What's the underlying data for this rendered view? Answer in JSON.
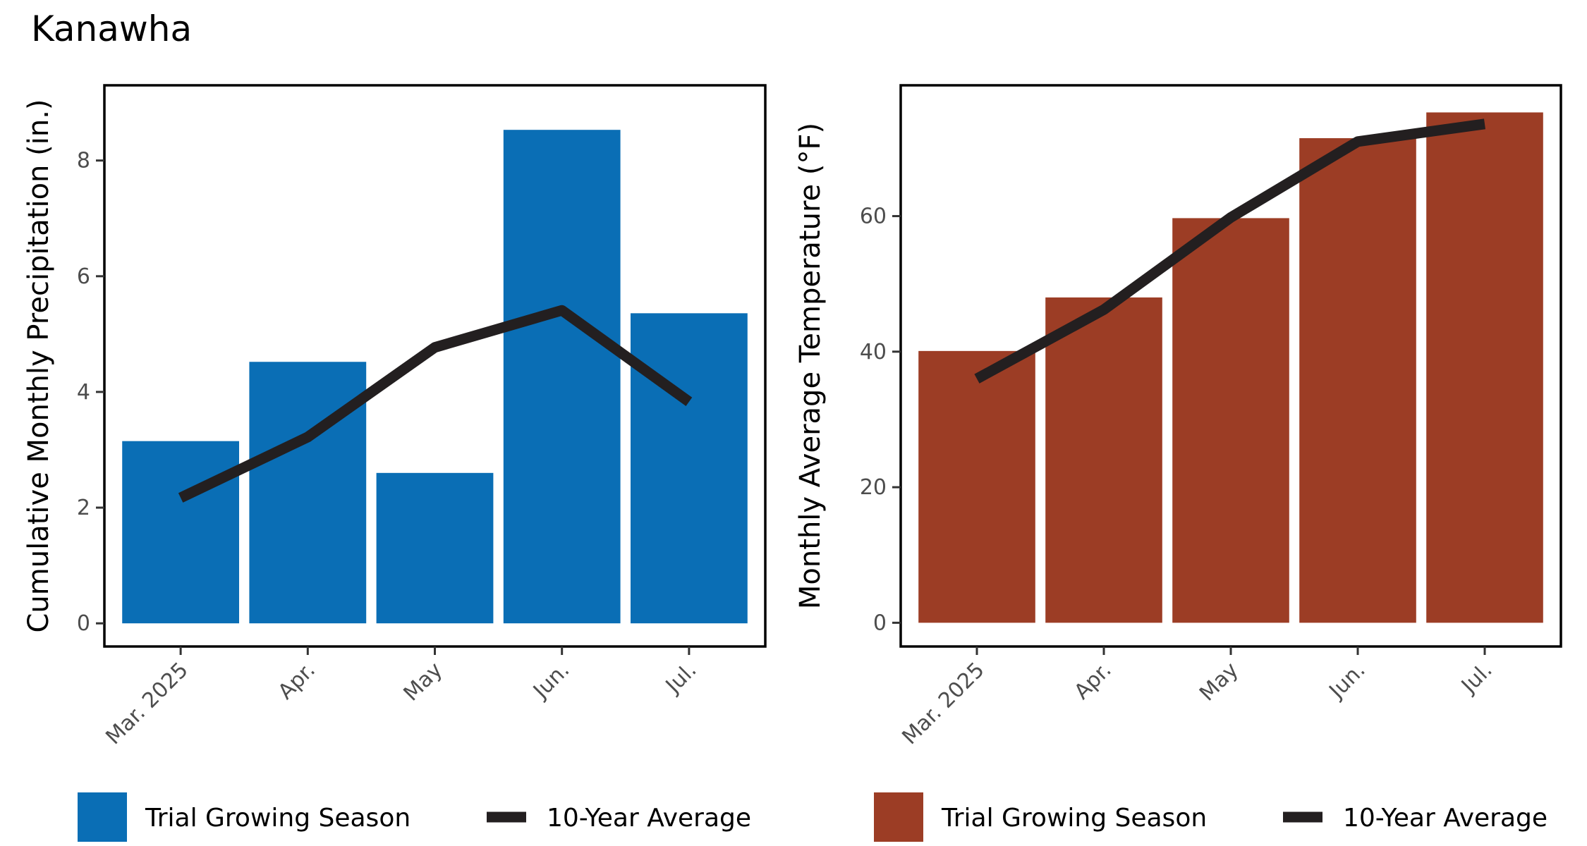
{
  "title": "Kanawha",
  "colors": {
    "precip": "#0A6EB5",
    "temp": "#9C3D25",
    "avg_line": "#231F20"
  },
  "chart_data": [
    {
      "type": "bar",
      "categories": [
        "Mar. 2025",
        "Apr.",
        "May",
        "Jun.",
        "Jul."
      ],
      "series": [
        {
          "name": "Trial Growing Season",
          "type": "bar",
          "values": [
            3.15,
            4.52,
            2.6,
            8.53,
            5.36
          ]
        },
        {
          "name": "10-Year Average",
          "type": "line",
          "values": [
            2.17,
            3.22,
            4.77,
            5.41,
            3.83
          ]
        }
      ],
      "ylabel": "Cumulative Monthly Precipitation (in.)",
      "xlabel": "",
      "ylim": [
        -0.4,
        9.3
      ],
      "yticks": [
        0,
        2,
        4,
        6,
        8
      ],
      "grid": false,
      "legend": "bottom"
    },
    {
      "type": "bar",
      "categories": [
        "Mar. 2025",
        "Apr.",
        "May",
        "Jun.",
        "Jul."
      ],
      "series": [
        {
          "name": "Trial Growing Season",
          "type": "bar",
          "values": [
            40.1,
            48.0,
            59.7,
            71.5,
            75.3
          ]
        },
        {
          "name": "10-Year Average",
          "type": "line",
          "values": [
            36.0,
            46.2,
            59.8,
            71.0,
            73.6
          ]
        }
      ],
      "ylabel": "Monthly Average Temperature  (°F)",
      "xlabel": "",
      "ylim": [
        -3.5,
        79.3
      ],
      "yticks": [
        0,
        20,
        40,
        60
      ],
      "grid": false,
      "legend": "bottom"
    }
  ]
}
